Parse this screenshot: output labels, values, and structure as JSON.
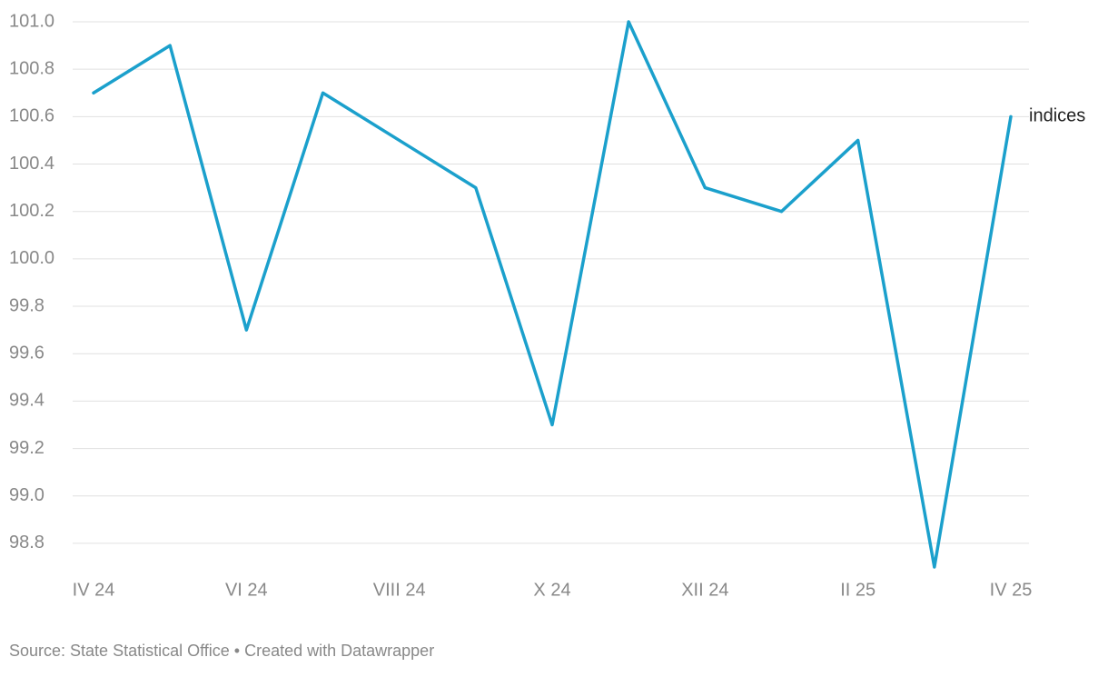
{
  "chart_data": {
    "type": "line",
    "source": "Source: State Statistical Office • Created with Datawrapper",
    "categories": [
      "IV 24",
      null,
      "VI 24",
      null,
      "VIII 24",
      null,
      "X 24",
      null,
      "XII 24",
      null,
      "II 25",
      null,
      "IV 25"
    ],
    "series": [
      {
        "name": "indices",
        "color": "#1ba0cc",
        "values": [
          100.7,
          100.9,
          99.7,
          100.7,
          100.5,
          100.3,
          99.3,
          101.0,
          100.3,
          100.2,
          100.5,
          98.7,
          100.6
        ]
      }
    ],
    "ylim": [
      98.7,
      101.0
    ],
    "yticks": [
      {
        "value": 101.0,
        "label": "101.0"
      },
      100.8,
      100.6,
      100.4,
      100.2,
      {
        "value": 100.0,
        "label": "100.0"
      },
      99.8,
      99.6,
      99.4,
      99.2,
      {
        "value": 99.0,
        "label": "99.0"
      },
      98.8
    ],
    "grid": true
  }
}
